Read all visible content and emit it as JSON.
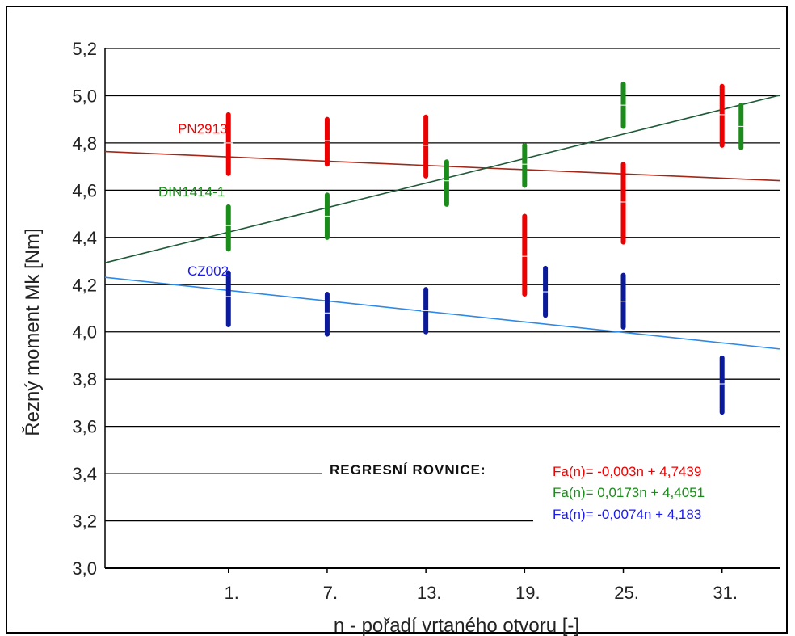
{
  "chart_data": {
    "type": "scatter",
    "title": "",
    "xlabel": "n - pořadí vrtaného otvoru [-]",
    "ylabel": "Řezný moment Mk [Nm]",
    "categories": [
      "1.",
      "7.",
      "13.",
      "19.",
      "25.",
      "31."
    ],
    "x": [
      1,
      7,
      13,
      19,
      25,
      31
    ],
    "xlim": [
      -6.5,
      34.5
    ],
    "ylim": [
      3.0,
      5.2
    ],
    "yticks": [
      "3,0",
      "3,2",
      "3,4",
      "3,6",
      "3,8",
      "4,0",
      "4,2",
      "4,4",
      "4,6",
      "4,8",
      "5,0",
      "5,2"
    ],
    "grid": "horizontal",
    "series": [
      {
        "name": "PN2913",
        "color": "#ee0000",
        "trend_color": "#a02818",
        "x_offset": 0,
        "mean": [
          4.8,
          4.81,
          4.79,
          4.32,
          4.55,
          4.92
        ],
        "min": [
          4.67,
          4.71,
          4.66,
          4.16,
          4.38,
          4.79
        ],
        "max": [
          4.92,
          4.9,
          4.91,
          4.49,
          4.71,
          5.04
        ],
        "regression": {
          "slope": -0.003,
          "intercept": 4.7439
        }
      },
      {
        "name": "DIN1414-1",
        "color": "#1a8c1a",
        "trend_color": "#1e5a37",
        "x_offset": 0,
        "mean": [
          4.45,
          4.49,
          4.64,
          4.71,
          4.96,
          4.87
        ],
        "min": [
          4.35,
          4.4,
          4.54,
          4.62,
          4.87,
          4.78
        ],
        "max": [
          4.53,
          4.58,
          4.72,
          4.79,
          5.05,
          4.96
        ],
        "regression": {
          "slope": 0.0173,
          "intercept": 4.4051
        }
      },
      {
        "name": "CZ002",
        "color": "#0a1a9a",
        "trend_color": "#2e8ae6",
        "x_offset": 0,
        "mean": [
          4.15,
          4.08,
          4.09,
          4.17,
          4.13,
          3.78
        ],
        "min": [
          4.03,
          3.99,
          4.0,
          4.07,
          4.02,
          3.66
        ],
        "max": [
          4.25,
          4.16,
          4.18,
          4.27,
          4.24,
          3.89
        ],
        "regression": {
          "slope": -0.0074,
          "intercept": 4.183
        }
      }
    ],
    "regression_title": "REGRESNÍ ROVNICE:",
    "equations": [
      {
        "text": "Fa(n)= -0,003n + 4,7439",
        "color": "#ee0000"
      },
      {
        "text": "Fa(n)= 0,0173n + 4,4051",
        "color": "#1a8c1a"
      },
      {
        "text": "Fa(n)= -0,0074n + 4,183",
        "color": "#1a1aee"
      }
    ]
  }
}
